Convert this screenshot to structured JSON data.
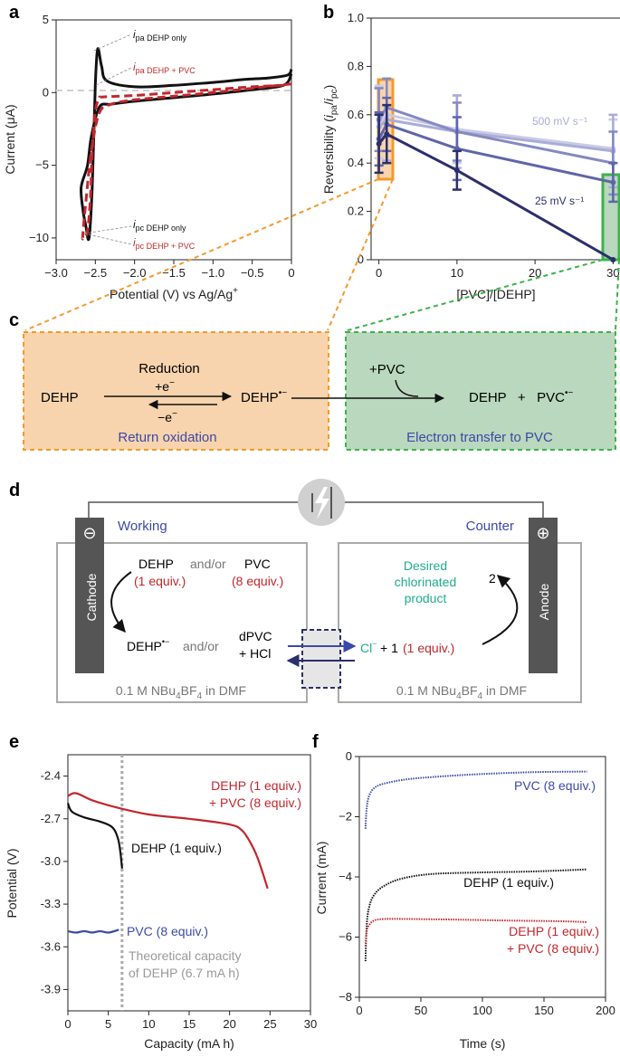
{
  "panels": {
    "a": "a",
    "b": "b",
    "c": "c",
    "d": "d",
    "e": "e",
    "f": "f"
  },
  "colors": {
    "black": "#111111",
    "red": "#c0272d",
    "blue": "#3b4aa8",
    "navy": "#2b2f6b",
    "orange": "#f39a2b",
    "orange_fill": "#f7d4ad",
    "green": "#3db24a",
    "green_fill": "#b9d8bd",
    "teal": "#1fae8e",
    "grey": "#9a9a9a"
  },
  "chart_data": [
    {
      "id": "a",
      "type": "line",
      "xlabel": "Potential (V) vs Ag/Ag",
      "xlabel_sup": "+",
      "ylabel": "Current (μA)",
      "xlim": [
        -3.0,
        0
      ],
      "ylim": [
        -11.5,
        5
      ],
      "xticks": [
        "−3.0",
        "−2.5",
        "−2.0",
        "−1.5",
        "−1.0",
        "−0.5",
        "0"
      ],
      "xtick_values": [
        -3.0,
        -2.5,
        -2.0,
        -1.5,
        -1.0,
        -0.5,
        0
      ],
      "yticks": [
        "5",
        "0",
        "−5",
        "−10"
      ],
      "ytick_values": [
        5,
        0,
        -5,
        -10
      ],
      "annotations": [
        {
          "main": "i",
          "sub": "pa DEHP only",
          "color": "black"
        },
        {
          "main": "i",
          "sub": "pa DEHP + PVC",
          "color": "red"
        },
        {
          "main": "i",
          "sub": "pc DEHP only",
          "color": "black"
        },
        {
          "main": "i",
          "sub": "pc DEHP + PVC",
          "color": "red"
        }
      ],
      "series": [
        {
          "color": "black",
          "style": "solid",
          "x": [
            0,
            -0.1,
            -0.5,
            -1.0,
            -1.5,
            -2.0,
            -2.3,
            -2.45,
            -2.55,
            -2.6,
            -2.68,
            -2.66,
            -2.62,
            -2.58,
            -2.54,
            -2.5,
            -2.47,
            -2.42,
            -2.35,
            -2.0,
            -1.5,
            -1.0,
            -0.6,
            -0.3,
            -0.05,
            0
          ],
          "y": [
            1.3,
            0.5,
            0.2,
            -0.1,
            -0.35,
            -0.6,
            -0.8,
            -1.0,
            -3.0,
            -5.0,
            -6.5,
            -8.0,
            -9.2,
            -10.0,
            -6.5,
            0.5,
            3.0,
            1.8,
            0.8,
            0.4,
            0.5,
            0.7,
            0.9,
            1.0,
            1.2,
            1.6
          ]
        },
        {
          "color": "red",
          "style": "dashed",
          "x": [
            0,
            -0.5,
            -1.0,
            -1.5,
            -2.0,
            -2.3,
            -2.45,
            -2.55,
            -2.62,
            -2.66,
            -2.65,
            -2.6,
            -2.56,
            -2.54,
            -2.5,
            -2.45,
            -2.4,
            -2.0,
            -1.5,
            -1.0,
            -0.5,
            -0.1
          ],
          "y": [
            0.6,
            0.3,
            0.0,
            -0.25,
            -0.5,
            -0.8,
            -1.4,
            -4.0,
            -7.5,
            -9.8,
            -10.0,
            -9.5,
            -7.0,
            -4.0,
            -1.3,
            -0.4,
            -0.3,
            -0.2,
            0.0,
            0.2,
            0.4,
            0.5
          ]
        }
      ]
    },
    {
      "id": "b",
      "type": "line",
      "xlabel": "[PVC]/[DEHP]",
      "ylabel_parts": [
        "Reversibility (",
        "i",
        "pa",
        "/",
        "i",
        "pc",
        ")"
      ],
      "xlim": [
        -1,
        31
      ],
      "ylim": [
        0,
        1.0
      ],
      "xticks": [
        "0",
        "10",
        "20",
        "30"
      ],
      "xtick_values": [
        0,
        10,
        20,
        30
      ],
      "yticks": [
        "0",
        "0.2",
        "0.4",
        "0.6",
        "0.8",
        "1.0"
      ],
      "ytick_values": [
        0,
        0.2,
        0.4,
        0.6,
        0.8,
        1.0
      ],
      "x": [
        0,
        1,
        10,
        30
      ],
      "series": [
        {
          "label": "",
          "color": "#c9cbe6",
          "values": [
            0.57,
            0.6,
            0.54,
            0.46
          ],
          "err": [
            0.15,
            0.15,
            0.14,
            0.12
          ]
        },
        {
          "label": "500 mV s⁻¹",
          "color": "#a9acd6",
          "values": [
            0.55,
            0.58,
            0.53,
            0.45
          ],
          "err": [
            0.16,
            0.17,
            0.15,
            0.15
          ]
        },
        {
          "label": "",
          "color": "#8489c1",
          "values": [
            0.58,
            0.63,
            0.53,
            0.4
          ],
          "err": [
            0.13,
            0.12,
            0.12,
            0.13
          ]
        },
        {
          "label": "",
          "color": "#5f65a8",
          "values": [
            0.5,
            0.56,
            0.46,
            0.32
          ],
          "err": [
            0.11,
            0.11,
            0.13,
            0.08
          ]
        },
        {
          "label": "25 mV s⁻¹",
          "color": "#2b2f6b",
          "values": [
            0.48,
            0.52,
            0.37,
            0.0
          ],
          "err": [
            0.12,
            0.12,
            0.08,
            0.0
          ]
        }
      ]
    },
    {
      "id": "e",
      "type": "line",
      "xlabel": "Capacity (mA h)",
      "ylabel": "Potential (V)",
      "xlim": [
        0,
        30
      ],
      "ylim": [
        -4.05,
        -2.25
      ],
      "xticks": [
        "0",
        "5",
        "10",
        "15",
        "20",
        "25",
        "30"
      ],
      "xtick_values": [
        0,
        5,
        10,
        15,
        20,
        25,
        30
      ],
      "yticks": [
        "-2.4",
        "-2.7",
        "-3.0",
        "-3.3",
        "-3.6",
        "-3.9"
      ],
      "ytick_values": [
        -2.4,
        -2.7,
        -3.0,
        -3.3,
        -3.6,
        -3.9
      ],
      "vline": 6.7,
      "series": [
        {
          "color": "red",
          "x": [
            0,
            1,
            3,
            6,
            10,
            15,
            20,
            21.5,
            22.5,
            23.5,
            24.7
          ],
          "y": [
            -2.54,
            -2.52,
            -2.57,
            -2.62,
            -2.67,
            -2.7,
            -2.74,
            -2.78,
            -2.86,
            -2.98,
            -3.19
          ]
        },
        {
          "color": "black",
          "x": [
            0,
            0.5,
            2,
            4,
            5.5,
            6.2,
            6.5,
            6.7
          ],
          "y": [
            -2.59,
            -2.65,
            -2.69,
            -2.72,
            -2.76,
            -2.84,
            -2.94,
            -3.05
          ]
        },
        {
          "color": "blue",
          "x": [
            0,
            1,
            2,
            3,
            4,
            5,
            6.3
          ],
          "y": [
            -3.49,
            -3.5,
            -3.49,
            -3.5,
            -3.49,
            -3.5,
            -3.48
          ]
        }
      ]
    },
    {
      "id": "f",
      "type": "line",
      "xlabel": "Time (s)",
      "ylabel": "Current (mA)",
      "xlim": [
        0,
        200
      ],
      "ylim": [
        -8,
        0
      ],
      "xticks": [
        "0",
        "50",
        "100",
        "150",
        "200"
      ],
      "xtick_values": [
        0,
        50,
        100,
        150,
        200
      ],
      "yticks": [
        "0",
        "−2",
        "−4",
        "−6",
        "−8"
      ],
      "ytick_values": [
        0,
        -2,
        -4,
        -6,
        -8
      ],
      "series": [
        {
          "color": "blue",
          "x": [
            5,
            6,
            8,
            12,
            20,
            40,
            70,
            100,
            140,
            185
          ],
          "y": [
            -2.4,
            -1.7,
            -1.3,
            -1.05,
            -0.9,
            -0.75,
            -0.65,
            -0.58,
            -0.52,
            -0.5
          ]
        },
        {
          "color": "black",
          "x": [
            5,
            6,
            8,
            12,
            20,
            35,
            60,
            100,
            140,
            185
          ],
          "y": [
            -6.8,
            -5.6,
            -5.0,
            -4.6,
            -4.3,
            -4.05,
            -3.9,
            -3.85,
            -3.82,
            -3.75
          ]
        },
        {
          "color": "red",
          "x": [
            5,
            6,
            8,
            12,
            20,
            40,
            80,
            120,
            160,
            185
          ],
          "y": [
            -6.3,
            -5.8,
            -5.6,
            -5.45,
            -5.4,
            -5.4,
            -5.42,
            -5.45,
            -5.47,
            -5.5
          ]
        }
      ]
    }
  ],
  "panel_e": {
    "label_red_1": "DEHP (1 equiv.)",
    "label_red_2": "+ PVC (8 equiv.)",
    "label_black": "DEHP (1 equiv.)",
    "label_blue": "PVC (8 equiv.)",
    "theory_1": "Theoretical capacity",
    "theory_2": "of DEHP (6.7 mA h)"
  },
  "panel_f": {
    "label_blue": "PVC (8 equiv.)",
    "label_black": "DEHP (1 equiv.)",
    "label_red_1": "DEHP (1 equiv.)",
    "label_red_2": "+ PVC (8 equiv.)"
  },
  "scheme_c": {
    "dehp": "DEHP",
    "reduction": "Reduction",
    "plus_e": "+e",
    "minus_e": "−e",
    "radical": "DEHP",
    "radical_sup": "•−",
    "return_oxidation": "Return oxidation",
    "plus_pvc": "+PVC",
    "products": "DEHP   +   PVC",
    "products_sup": "•−",
    "electron_transfer": "Electron transfer to PVC"
  },
  "scheme_d": {
    "working": "Working",
    "counter": "Counter",
    "cathode": "Cathode",
    "anode": "Anode",
    "minus_sym": "⊖",
    "plus_sym": "⊕",
    "dehp": "DEHP",
    "andor1": "and/or",
    "pvc": "PVC",
    "equiv1": "(1 equiv.)",
    "equiv8": "(8 equiv.)",
    "radical": "DEHP",
    "radical_sup": "•−",
    "andor2": "and/or",
    "dpvc": "dPVC",
    "hcl": "+ HCl",
    "cl": "Cl",
    "cl_sup": "−",
    "plus1": "+ 1",
    "equiv1b": "(1 equiv.)",
    "desired_1": "Desired",
    "desired_2": "chlorinated",
    "desired_3": "product",
    "two": "2",
    "electrolyte_left": "0.1 M NBu",
    "electrolyte_right": "0.1 M NBu",
    "sub4": "4",
    "bf": "BF",
    "in_dmf": " in DMF"
  }
}
